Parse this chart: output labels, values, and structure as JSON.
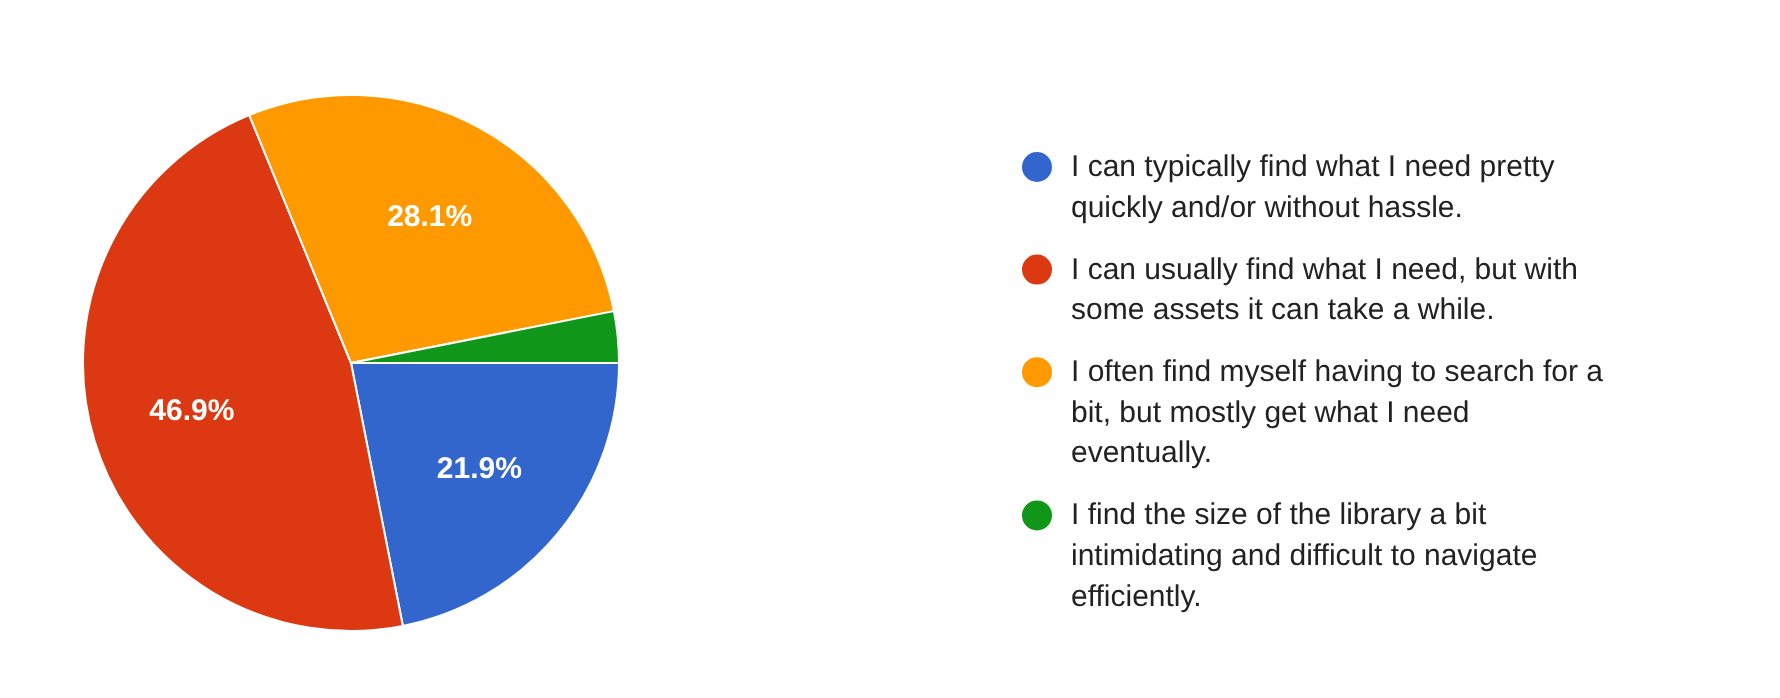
{
  "chart_data": {
    "type": "pie",
    "categories": [
      "I can typically find what I need pretty quickly and/or without hassle.",
      "I can usually find what I need, but with some assets it can take a while.",
      "I often find myself having to search for a bit, but mostly get what I need eventually.",
      "I find the size of the library a bit intimidating and difficult to navigate efficiently."
    ],
    "values": [
      21.9,
      46.9,
      28.1,
      3.1
    ],
    "colors": [
      "#3366cc",
      "#dc3912",
      "#ff9900",
      "#109618"
    ],
    "value_labels": [
      "21.9%",
      "46.9%",
      "28.1%",
      null
    ],
    "legend": "right"
  }
}
